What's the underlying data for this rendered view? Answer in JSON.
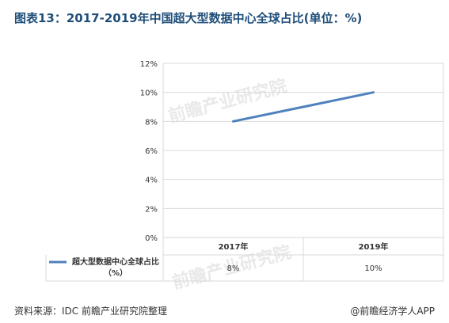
{
  "title": "图表13：2017-2019年中国超大型数据中心全球占比(单位：%)",
  "source": "资料来源：IDC 前瞻产业研究院整理",
  "brand": "@前瞻经济学人APP",
  "watermark": "前瞻产业研究院",
  "colors": {
    "line": "#4f81bd",
    "title": "#1f4e79",
    "grid": "#d9d9d9"
  },
  "chart_data": {
    "type": "line",
    "categories": [
      "2017年",
      "2019年"
    ],
    "series": [
      {
        "name": "超大型数据中心全球占比（%）",
        "values": [
          8,
          10
        ]
      }
    ],
    "value_labels": [
      "8%",
      "10%"
    ],
    "yticks": [
      "0%",
      "2%",
      "4%",
      "6%",
      "8%",
      "10%",
      "12%"
    ],
    "ylim": [
      0,
      12
    ],
    "grid": true,
    "legend": "data-table-bottom"
  }
}
